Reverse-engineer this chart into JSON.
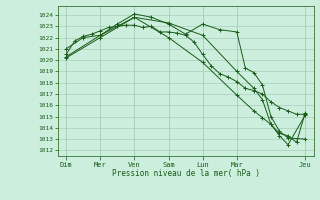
{
  "background_color": "#cceedd",
  "grid_color": "#aaccbb",
  "line_color": "#1a5c1a",
  "xlabel": "Pression niveau de la mer( hPa )",
  "ylim": [
    1011.5,
    1024.8
  ],
  "yticks": [
    1012,
    1013,
    1014,
    1015,
    1016,
    1017,
    1018,
    1019,
    1020,
    1021,
    1022,
    1023,
    1024
  ],
  "x_day_labels": [
    "Dim",
    "Mer",
    "Ven",
    "Sam",
    "Lun",
    "Mar",
    "Jeu"
  ],
  "x_day_positions": [
    0,
    24,
    48,
    72,
    96,
    120,
    168
  ],
  "xlim": [
    -6,
    174
  ],
  "series": [
    {
      "x": [
        0,
        6,
        12,
        18,
        24,
        30,
        36,
        42,
        48,
        54,
        60,
        66,
        72,
        78,
        84,
        90,
        96,
        102,
        108,
        114,
        120,
        126,
        132,
        138,
        144,
        150,
        156,
        162,
        168
      ],
      "y": [
        1020.5,
        1021.7,
        1022.1,
        1022.3,
        1022.6,
        1022.9,
        1023.0,
        1023.1,
        1023.1,
        1022.9,
        1023.0,
        1022.5,
        1022.5,
        1022.4,
        1022.2,
        1021.6,
        1020.5,
        1019.5,
        1018.8,
        1018.5,
        1018.1,
        1017.5,
        1017.3,
        1017.0,
        1016.3,
        1015.8,
        1015.5,
        1015.2,
        1015.2
      ],
      "marker": "+"
    },
    {
      "x": [
        0,
        12,
        24,
        36,
        48,
        60,
        72,
        84,
        96,
        108,
        120,
        126,
        132,
        138,
        144,
        150,
        156,
        168
      ],
      "y": [
        1021.0,
        1022.0,
        1022.2,
        1023.2,
        1024.1,
        1023.8,
        1023.2,
        1022.3,
        1023.2,
        1022.7,
        1022.5,
        1019.3,
        1018.9,
        1017.8,
        1015.0,
        1013.7,
        1013.1,
        1013.0
      ],
      "marker": "+"
    },
    {
      "x": [
        0,
        24,
        48,
        72,
        96,
        120,
        132,
        138,
        144,
        150,
        156,
        162,
        168
      ],
      "y": [
        1020.3,
        1022.2,
        1023.8,
        1023.3,
        1022.2,
        1019.0,
        1017.5,
        1016.5,
        1014.3,
        1013.5,
        1013.3,
        1012.7,
        1015.3
      ],
      "marker": "+"
    },
    {
      "x": [
        0,
        24,
        48,
        72,
        96,
        120,
        132,
        138,
        144,
        150,
        156,
        168
      ],
      "y": [
        1020.2,
        1022.0,
        1023.8,
        1022.0,
        1019.8,
        1016.9,
        1015.5,
        1014.9,
        1014.3,
        1013.3,
        1012.5,
        1015.1
      ],
      "marker": "+"
    }
  ]
}
